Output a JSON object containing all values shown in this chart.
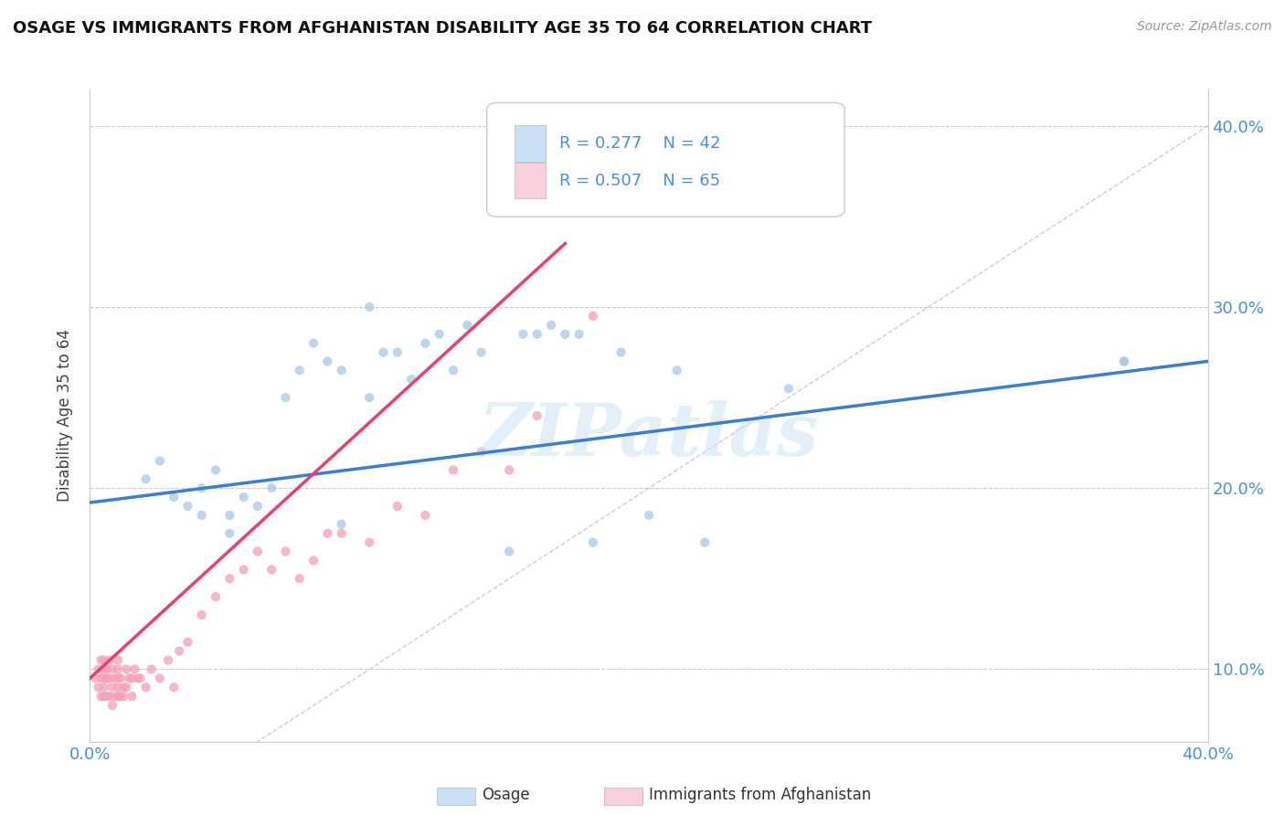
{
  "title": "OSAGE VS IMMIGRANTS FROM AFGHANISTAN DISABILITY AGE 35 TO 64 CORRELATION CHART",
  "source_text": "Source: ZipAtlas.com",
  "ylabel": "Disability Age 35 to 64",
  "xlim": [
    0.0,
    0.4
  ],
  "ylim": [
    0.06,
    0.42
  ],
  "x_ticks": [
    0.0,
    0.05,
    0.1,
    0.15,
    0.2,
    0.25,
    0.3,
    0.35,
    0.4
  ],
  "y_ticks": [
    0.1,
    0.2,
    0.3,
    0.4
  ],
  "y_tick_labels": [
    "10.0%",
    "20.0%",
    "30.0%",
    "40.0%"
  ],
  "osage_color": "#aac8e8",
  "afghanistan_color": "#f4a0b8",
  "osage_line_color": "#3a7fd5",
  "afghanistan_line_color": "#e84070",
  "ref_line_color": "#d0b0b0",
  "legend_box_color": "#cce0f5",
  "legend_box_color2": "#f8d0dc",
  "R_osage": 0.277,
  "N_osage": 42,
  "R_afghanistan": 0.507,
  "N_afghanistan": 65,
  "osage_x": [
    0.02,
    0.025,
    0.03,
    0.035,
    0.04,
    0.04,
    0.045,
    0.05,
    0.05,
    0.055,
    0.06,
    0.065,
    0.07,
    0.075,
    0.08,
    0.085,
    0.09,
    0.09,
    0.1,
    0.1,
    0.105,
    0.11,
    0.115,
    0.12,
    0.125,
    0.13,
    0.135,
    0.14,
    0.15,
    0.155,
    0.16,
    0.165,
    0.17,
    0.175,
    0.18,
    0.19,
    0.2,
    0.21,
    0.22,
    0.25,
    0.37,
    0.37
  ],
  "osage_y": [
    0.205,
    0.215,
    0.195,
    0.19,
    0.185,
    0.2,
    0.21,
    0.175,
    0.185,
    0.195,
    0.19,
    0.2,
    0.25,
    0.265,
    0.28,
    0.27,
    0.265,
    0.18,
    0.25,
    0.3,
    0.275,
    0.275,
    0.26,
    0.28,
    0.285,
    0.265,
    0.29,
    0.275,
    0.165,
    0.285,
    0.285,
    0.29,
    0.285,
    0.285,
    0.17,
    0.275,
    0.185,
    0.265,
    0.17,
    0.255,
    0.27,
    0.27
  ],
  "afghanistan_x": [
    0.002,
    0.003,
    0.003,
    0.004,
    0.004,
    0.004,
    0.005,
    0.005,
    0.005,
    0.005,
    0.005,
    0.006,
    0.006,
    0.006,
    0.007,
    0.007,
    0.007,
    0.008,
    0.008,
    0.008,
    0.009,
    0.009,
    0.01,
    0.01,
    0.01,
    0.01,
    0.01,
    0.011,
    0.011,
    0.012,
    0.012,
    0.013,
    0.013,
    0.014,
    0.015,
    0.015,
    0.016,
    0.017,
    0.018,
    0.02,
    0.022,
    0.025,
    0.028,
    0.03,
    0.032,
    0.035,
    0.04,
    0.045,
    0.05,
    0.055,
    0.06,
    0.065,
    0.07,
    0.075,
    0.08,
    0.085,
    0.09,
    0.1,
    0.11,
    0.12,
    0.13,
    0.14,
    0.15,
    0.16,
    0.18
  ],
  "afghanistan_y": [
    0.095,
    0.09,
    0.1,
    0.085,
    0.095,
    0.105,
    0.085,
    0.09,
    0.095,
    0.1,
    0.105,
    0.085,
    0.095,
    0.1,
    0.085,
    0.095,
    0.105,
    0.08,
    0.09,
    0.1,
    0.085,
    0.095,
    0.085,
    0.09,
    0.095,
    0.1,
    0.105,
    0.085,
    0.095,
    0.085,
    0.09,
    0.09,
    0.1,
    0.095,
    0.085,
    0.095,
    0.1,
    0.095,
    0.095,
    0.09,
    0.1,
    0.095,
    0.105,
    0.09,
    0.11,
    0.115,
    0.13,
    0.14,
    0.15,
    0.155,
    0.165,
    0.155,
    0.165,
    0.15,
    0.16,
    0.175,
    0.175,
    0.17,
    0.19,
    0.185,
    0.21,
    0.22,
    0.21,
    0.24,
    0.295
  ],
  "watermark_text": "ZIPatlas",
  "background_color": "#ffffff",
  "grid_color": "#cccccc",
  "tick_color": "#4a90d9",
  "title_color": "#111111",
  "source_color": "#999999",
  "ylabel_color": "#444444"
}
